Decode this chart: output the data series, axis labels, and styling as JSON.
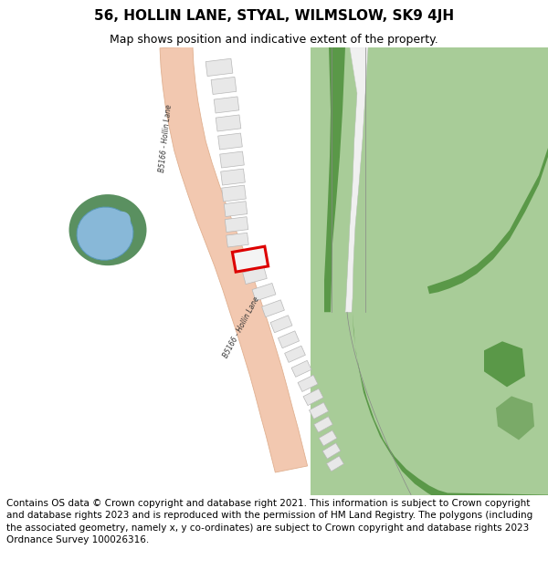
{
  "title": "56, HOLLIN LANE, STYAL, WILMSLOW, SK9 4JH",
  "subtitle": "Map shows position and indicative extent of the property.",
  "footer": "Contains OS data © Crown copyright and database right 2021. This information is subject to Crown copyright and database rights 2023 and is reproduced with the permission of HM Land Registry. The polygons (including the associated geometry, namely x, y co-ordinates) are subject to Crown copyright and database rights 2023 Ordnance Survey 100026316.",
  "bg_color": "#ffffff",
  "map_bg": "#ffffff",
  "road_color": "#f2c8b0",
  "road_edge_color": "#e0b090",
  "green_dark": "#5a9848",
  "green_mid": "#7ab86a",
  "green_light": "#a8cc98",
  "water_color": "#88b8d8",
  "water_edge": "#5898b8",
  "green_surround": "#5a9060",
  "building_fill": "#e8e8e8",
  "building_edge": "#b8b8b8",
  "highlight_color": "#dd0000",
  "gray_line": "#aaaaaa",
  "title_fontsize": 11,
  "subtitle_fontsize": 9,
  "footer_fontsize": 7.5,
  "road_label": "B5166 - Hollin Lane"
}
